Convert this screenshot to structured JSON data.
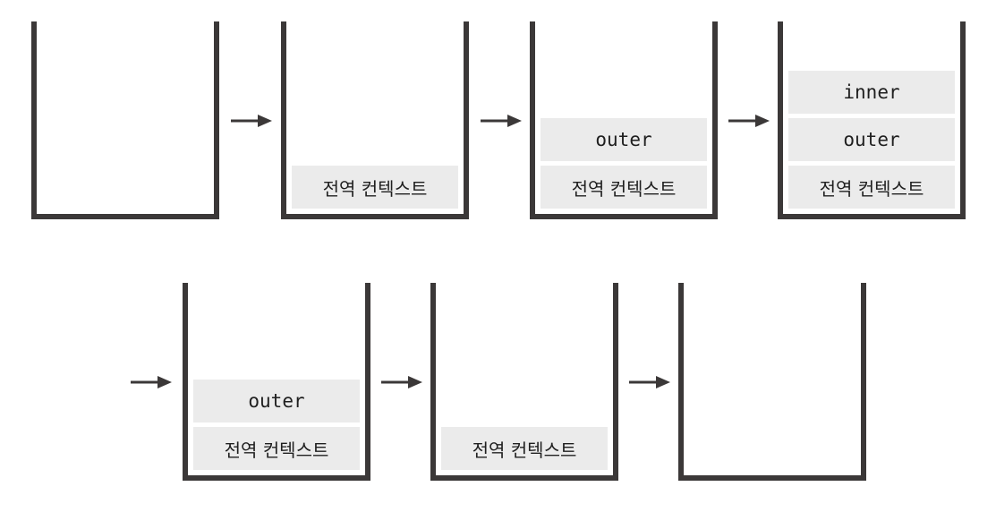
{
  "stacks": [
    {
      "frames": []
    },
    {
      "frames": [
        "전역 컨텍스트"
      ]
    },
    {
      "frames": [
        "전역 컨텍스트",
        "outer"
      ]
    },
    {
      "frames": [
        "전역 컨텍스트",
        "outer",
        "inner"
      ]
    },
    {
      "frames": [
        "전역 컨텍스트",
        "outer"
      ]
    },
    {
      "frames": [
        "전역 컨텍스트"
      ]
    },
    {
      "frames": []
    }
  ],
  "colors": {
    "stack_border": "#3b3838",
    "frame_fill": "#ebebeb",
    "text": "#1f1f1f"
  }
}
